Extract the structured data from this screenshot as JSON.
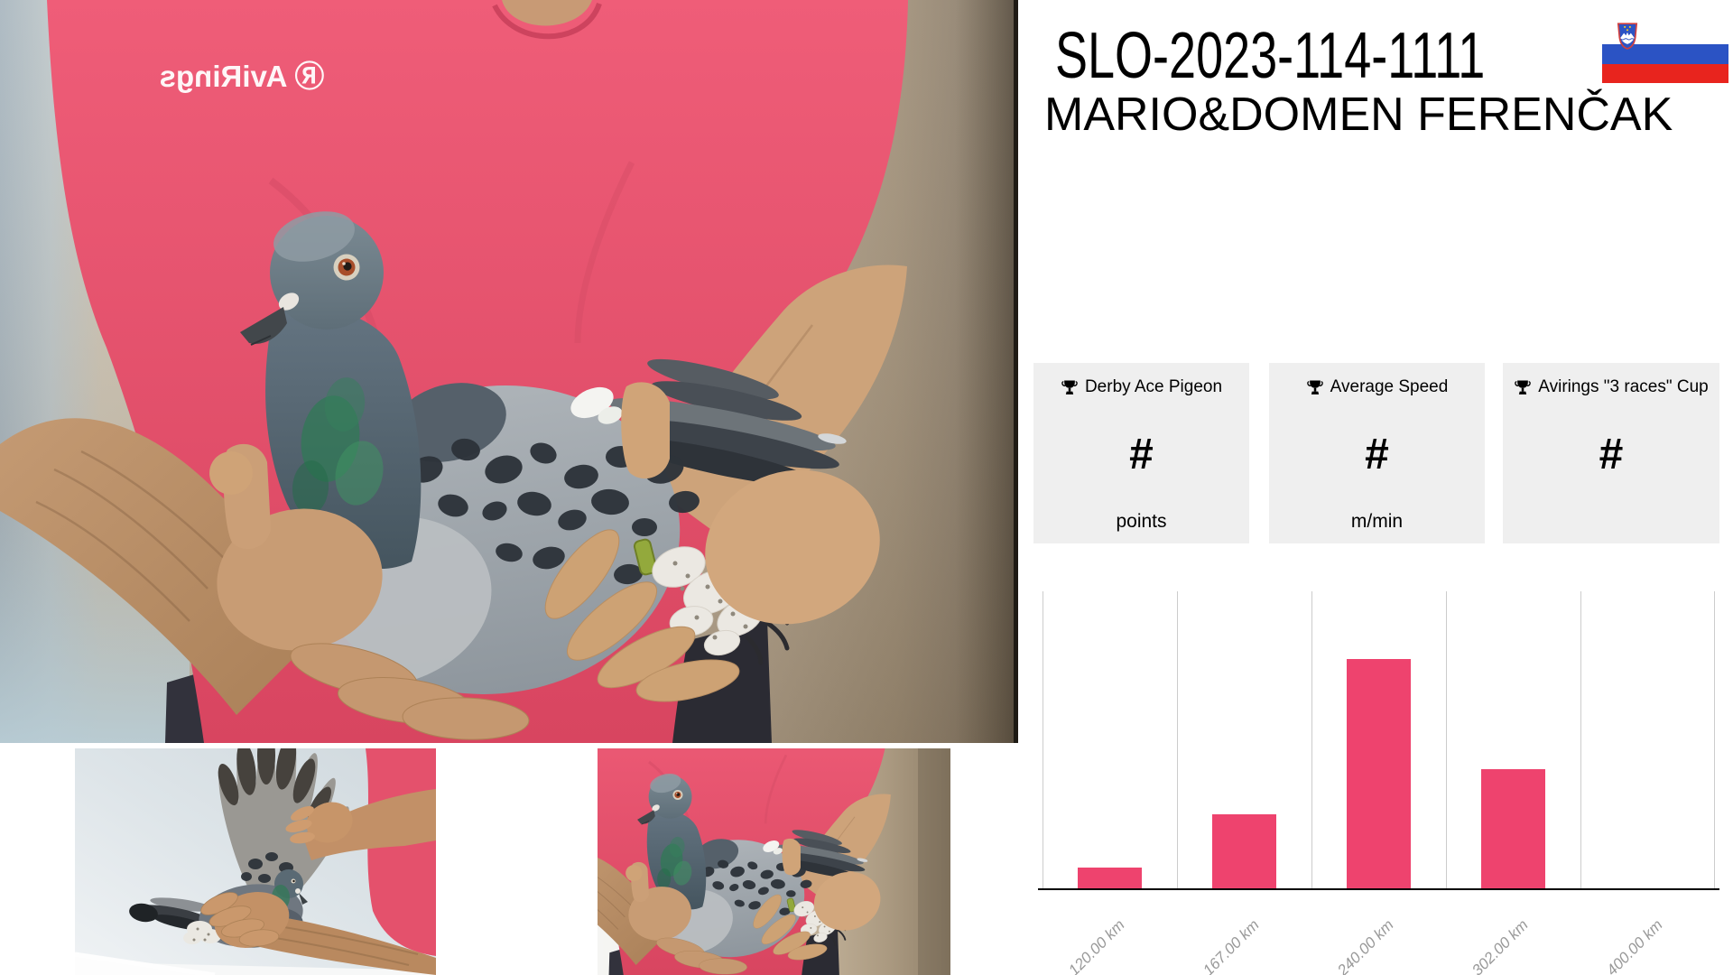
{
  "header": {
    "ring_id": "SLO-2023-114-1111",
    "owner_name": "MARIO&DOMEN FERENČAK",
    "flag_country": "Slovenia"
  },
  "colors": {
    "accent_pink": "#ee436e",
    "card_background": "#efefef",
    "shirt_pink": "#e65570",
    "flag_blue": "#2b53c4",
    "flag_red": "#e8241e",
    "chart_gridline": "#cccccc",
    "chart_tick_text": "#999999"
  },
  "stats_cards": [
    {
      "icon": "trophy-icon",
      "label": "Derby Ace Pigeon",
      "value": "#",
      "unit": "points"
    },
    {
      "icon": "trophy-icon",
      "label": "Average Speed",
      "value": "#",
      "unit": "m/min"
    },
    {
      "icon": "trophy-icon",
      "label": "Avirings \"3 races\" Cup",
      "value": "#",
      "unit": ""
    }
  ],
  "chart_data": {
    "type": "bar",
    "categories": [
      "120.00 km",
      "167.00 km",
      "240.00 km",
      "302.00 km",
      "400.00 km"
    ],
    "values": [
      7.3,
      25.2,
      77.3,
      40.3,
      0
    ],
    "values_unit": "percent_of_plot_height",
    "note": "y-axis has no tick labels or horizontal gridlines; bar heights estimated relative to full plot height (330px): [24, 83, 255, 133, 0] px",
    "title": "",
    "xlabel": "",
    "ylabel": "",
    "bar_color": "#ee436e",
    "grid": "vertical category separator lines only",
    "legend": "none",
    "tick_label_style": "italic, gray, rotated 45deg"
  },
  "photos": {
    "shirt_logo": "Ⓡ AviRings"
  }
}
